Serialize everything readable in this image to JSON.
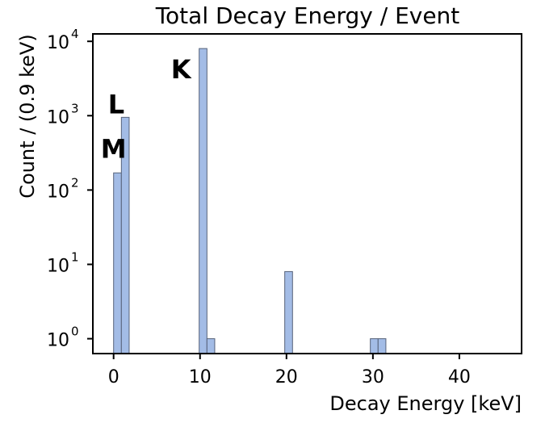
{
  "chart_data": {
    "type": "bar",
    "title": "Total Decay Energy / Event",
    "xlabel": "Decay Energy [keV]",
    "ylabel": "Count / (0.9 keV)",
    "yscale": "log",
    "xlim": [
      -2.4,
      47.2
    ],
    "ylim_log10": [
      -0.2,
      4.1
    ],
    "grid": false,
    "legend": "none",
    "bar_color": "#a3bce6",
    "bar_edge_color": "#56627a",
    "xticks": [
      {
        "value": 0,
        "label": "0"
      },
      {
        "value": 10,
        "label": "10"
      },
      {
        "value": 20,
        "label": "20"
      },
      {
        "value": 30,
        "label": "30"
      },
      {
        "value": 40,
        "label": "40"
      }
    ],
    "yticks": [
      {
        "exponent": 0,
        "base": "10",
        "sup": "0"
      },
      {
        "exponent": 1,
        "base": "10",
        "sup": "1"
      },
      {
        "exponent": 2,
        "base": "10",
        "sup": "2"
      },
      {
        "exponent": 3,
        "base": "10",
        "sup": "3"
      },
      {
        "exponent": 4,
        "base": "10",
        "sup": "4"
      }
    ],
    "bins": [
      {
        "x0": 0.0,
        "x1": 0.9,
        "count": 170
      },
      {
        "x0": 0.9,
        "x1": 1.8,
        "count": 950
      },
      {
        "x0": 9.9,
        "x1": 10.8,
        "count": 8000
      },
      {
        "x0": 10.8,
        "x1": 11.7,
        "count": 1
      },
      {
        "x0": 19.8,
        "x1": 20.7,
        "count": 8
      },
      {
        "x0": 29.7,
        "x1": 30.6,
        "count": 1
      },
      {
        "x0": 30.6,
        "x1": 31.5,
        "count": 1
      }
    ],
    "annotations": [
      {
        "text": "M",
        "x": 0.0,
        "y_log10": 2.55
      },
      {
        "text": "L",
        "x": 0.3,
        "y_log10": 3.15
      },
      {
        "text": "K",
        "x": 7.8,
        "y_log10": 3.62
      }
    ]
  }
}
